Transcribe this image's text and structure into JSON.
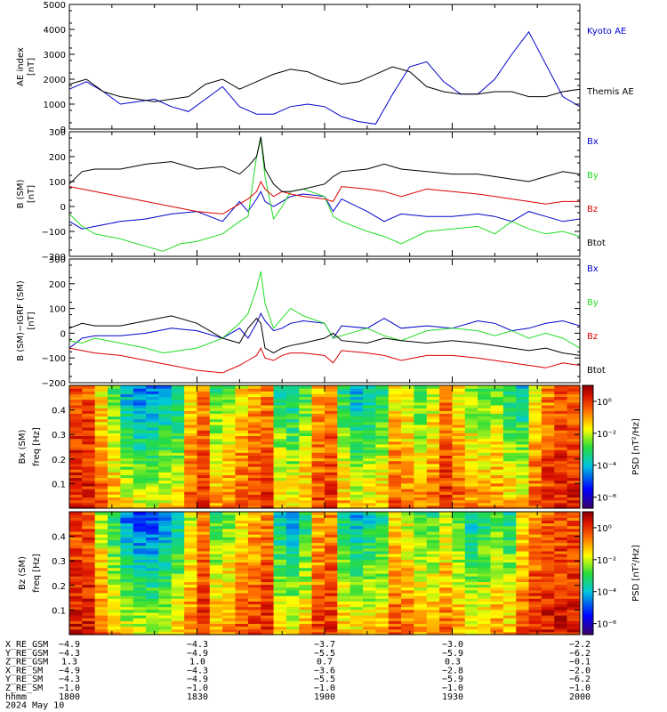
{
  "colors": {
    "blue": "#0000cc",
    "green": "#22dd22",
    "red": "#dd0000",
    "black": "#000000"
  },
  "chart_data": [
    {
      "type": "line",
      "ylabel": "AE index",
      "yunit": "[nT]",
      "ylim": [
        0,
        5000
      ],
      "yticks": [
        "0",
        "1000",
        "2000",
        "3000",
        "4000",
        "5000"
      ],
      "xlim": [
        0,
        120
      ],
      "x_unit_note": "minutes after 1800 UT",
      "series": [
        {
          "name": "Kyoto AE",
          "color": "#0000cc",
          "x": [
            0,
            4,
            8,
            12,
            16,
            20,
            24,
            28,
            32,
            36,
            40,
            44,
            48,
            52,
            56,
            60,
            64,
            68,
            72,
            76,
            80,
            84,
            88,
            92,
            96,
            100,
            104,
            108,
            112,
            116,
            120
          ],
          "y": [
            1600,
            1900,
            1500,
            1000,
            1100,
            1200,
            900,
            700,
            1200,
            1700,
            900,
            600,
            600,
            900,
            1000,
            900,
            500,
            300,
            200,
            1400,
            2500,
            2700,
            1900,
            1400,
            1400,
            2000,
            3000,
            3900,
            2600,
            1300,
            900
          ]
        },
        {
          "name": "Themis AE",
          "color": "#000000",
          "x": [
            0,
            4,
            8,
            12,
            16,
            20,
            24,
            28,
            32,
            36,
            40,
            44,
            48,
            52,
            56,
            60,
            64,
            68,
            72,
            76,
            80,
            84,
            88,
            92,
            96,
            100,
            104,
            108,
            112,
            116,
            120
          ],
          "y": [
            1800,
            2000,
            1500,
            1300,
            1200,
            1100,
            1200,
            1300,
            1800,
            2000,
            1600,
            1900,
            2200,
            2400,
            2300,
            2000,
            1800,
            1900,
            2200,
            2500,
            2300,
            1700,
            1500,
            1400,
            1400,
            1500,
            1500,
            1300,
            1300,
            1500,
            1600
          ]
        }
      ]
    },
    {
      "type": "line",
      "ylabel": "B (SM)",
      "yunit": "[nT]",
      "ylim": [
        -200,
        300
      ],
      "yticks": [
        "−200",
        "−100",
        "0",
        "100",
        "200",
        "300"
      ],
      "xlim": [
        0,
        120
      ],
      "series": [
        {
          "name": "Bx",
          "color": "#0000cc",
          "x": [
            0,
            3,
            6,
            12,
            18,
            24,
            30,
            36,
            40,
            42,
            44,
            45,
            46,
            48,
            50,
            52,
            55,
            60,
            62,
            64,
            70,
            74,
            78,
            84,
            90,
            96,
            100,
            104,
            108,
            112,
            116,
            120
          ],
          "y": [
            -60,
            -90,
            -80,
            -60,
            -50,
            -30,
            -20,
            -60,
            20,
            -20,
            30,
            60,
            20,
            0,
            20,
            40,
            50,
            40,
            -20,
            30,
            -20,
            -60,
            -30,
            -40,
            -40,
            -30,
            -40,
            -60,
            -20,
            -40,
            -60,
            -50
          ]
        },
        {
          "name": "By",
          "color": "#22dd22",
          "x": [
            0,
            3,
            6,
            12,
            18,
            22,
            26,
            30,
            36,
            40,
            42,
            44,
            45,
            46,
            48,
            50,
            52,
            55,
            60,
            62,
            64,
            70,
            74,
            78,
            84,
            90,
            96,
            100,
            104,
            108,
            112,
            116,
            120
          ],
          "y": [
            -30,
            -80,
            -110,
            -130,
            -160,
            -180,
            -150,
            -140,
            -110,
            -60,
            -40,
            200,
            270,
            120,
            -50,
            0,
            60,
            70,
            40,
            -40,
            -60,
            -100,
            -120,
            -150,
            -100,
            -90,
            -80,
            -110,
            -60,
            -90,
            -110,
            -100,
            -120
          ]
        },
        {
          "name": "Bz",
          "color": "#dd0000",
          "x": [
            0,
            3,
            6,
            12,
            18,
            24,
            30,
            36,
            40,
            42,
            44,
            45,
            46,
            48,
            50,
            52,
            55,
            60,
            62,
            64,
            70,
            74,
            78,
            84,
            90,
            96,
            100,
            104,
            108,
            112,
            116,
            120
          ],
          "y": [
            80,
            70,
            60,
            40,
            20,
            0,
            -20,
            -30,
            10,
            30,
            60,
            100,
            70,
            40,
            60,
            50,
            40,
            30,
            20,
            80,
            70,
            60,
            40,
            70,
            60,
            50,
            40,
            30,
            20,
            10,
            20,
            20
          ]
        },
        {
          "name": "Btot",
          "color": "#000000",
          "x": [
            0,
            3,
            6,
            12,
            18,
            24,
            30,
            36,
            40,
            42,
            44,
            45,
            46,
            48,
            50,
            52,
            55,
            60,
            62,
            64,
            70,
            74,
            78,
            84,
            90,
            96,
            100,
            104,
            108,
            112,
            116,
            120
          ],
          "y": [
            90,
            140,
            150,
            150,
            170,
            180,
            150,
            160,
            130,
            160,
            200,
            280,
            150,
            90,
            60,
            60,
            70,
            90,
            120,
            140,
            150,
            170,
            150,
            140,
            130,
            130,
            120,
            110,
            100,
            120,
            140,
            130
          ]
        }
      ]
    },
    {
      "type": "line",
      "ylabel": "B (SM)−IGRF (SM)",
      "yunit": "[nT]",
      "ylim": [
        -200,
        300
      ],
      "yticks": [
        "−200",
        "−100",
        "0",
        "100",
        "200",
        "300"
      ],
      "xlim": [
        0,
        120
      ],
      "series": [
        {
          "name": "Bx",
          "color": "#0000cc",
          "x": [
            0,
            3,
            6,
            12,
            18,
            24,
            30,
            36,
            40,
            42,
            44,
            45,
            46,
            48,
            50,
            52,
            55,
            60,
            62,
            64,
            70,
            74,
            78,
            84,
            90,
            96,
            100,
            104,
            108,
            112,
            116,
            120
          ],
          "y": [
            -60,
            -20,
            -10,
            -10,
            0,
            20,
            10,
            -20,
            20,
            -20,
            40,
            80,
            50,
            10,
            20,
            40,
            50,
            40,
            -20,
            30,
            20,
            60,
            20,
            30,
            20,
            50,
            40,
            10,
            20,
            40,
            50,
            30
          ]
        },
        {
          "name": "By",
          "color": "#22dd22",
          "x": [
            0,
            3,
            6,
            12,
            18,
            22,
            26,
            30,
            36,
            40,
            42,
            44,
            45,
            46,
            48,
            50,
            52,
            55,
            60,
            62,
            64,
            70,
            74,
            78,
            84,
            90,
            96,
            100,
            104,
            108,
            112,
            116,
            120
          ],
          "y": [
            -30,
            -40,
            -20,
            -40,
            -60,
            -80,
            -70,
            -60,
            -20,
            40,
            80,
            180,
            250,
            120,
            20,
            60,
            100,
            70,
            40,
            -20,
            -10,
            20,
            -10,
            -30,
            10,
            20,
            10,
            -10,
            10,
            -20,
            0,
            -20,
            -60
          ]
        },
        {
          "name": "Bz",
          "color": "#dd0000",
          "x": [
            0,
            3,
            6,
            12,
            18,
            24,
            30,
            36,
            40,
            42,
            44,
            45,
            46,
            48,
            50,
            52,
            55,
            60,
            62,
            64,
            70,
            74,
            78,
            84,
            90,
            96,
            100,
            104,
            108,
            112,
            116,
            120
          ],
          "y": [
            -60,
            -70,
            -80,
            -90,
            -110,
            -130,
            -150,
            -160,
            -130,
            -110,
            -90,
            -60,
            -100,
            -110,
            -90,
            -80,
            -80,
            -90,
            -120,
            -70,
            -80,
            -90,
            -110,
            -90,
            -90,
            -100,
            -110,
            -120,
            -130,
            -140,
            -120,
            -130
          ]
        },
        {
          "name": "Btot",
          "color": "#000000",
          "x": [
            0,
            3,
            6,
            12,
            18,
            24,
            30,
            36,
            40,
            42,
            44,
            45,
            46,
            48,
            50,
            52,
            55,
            60,
            62,
            64,
            70,
            74,
            78,
            84,
            90,
            96,
            100,
            104,
            108,
            112,
            116,
            120
          ],
          "y": [
            20,
            40,
            30,
            30,
            50,
            70,
            40,
            -20,
            -40,
            20,
            60,
            40,
            -60,
            -80,
            -60,
            -50,
            -40,
            -20,
            0,
            -30,
            -40,
            -20,
            -30,
            -40,
            -30,
            -40,
            -50,
            -60,
            -70,
            -60,
            -80,
            -90
          ]
        }
      ]
    },
    {
      "type": "heatmap",
      "ylabel": "Bx (SM)",
      "ylabel2": "freq",
      "yunit": "[Hz]",
      "ylim": [
        0,
        0.5
      ],
      "yticks": [
        "0.1",
        "0.2",
        "0.3",
        "0.4"
      ],
      "xlim": [
        0,
        120
      ],
      "colorbar": {
        "label": "PSD [nT²/Hz]",
        "ticks": [
          "10⁻⁶",
          "10⁻⁴",
          "10⁻²",
          "10⁰"
        ]
      },
      "column_power": [
        0.15,
        0.15,
        0.3,
        0.45,
        0.6,
        0.65,
        0.65,
        0.6,
        0.55,
        0.3,
        0.2,
        0.45,
        0.4,
        0.3,
        0.25,
        0.2,
        0.5,
        0.55,
        0.45,
        0.25,
        0.2,
        0.5,
        0.6,
        0.55,
        0.5,
        0.3,
        0.35,
        0.45,
        0.35,
        0.2,
        0.3,
        0.4,
        0.45,
        0.4,
        0.5,
        0.55,
        0.3,
        0.2,
        0.15,
        0.15
      ],
      "freq_decay": 0.6
    },
    {
      "type": "heatmap",
      "ylabel": "Bz (SM)",
      "ylabel2": "freq",
      "yunit": "[Hz]",
      "ylim": [
        0,
        0.5
      ],
      "yticks": [
        "0.1",
        "0.2",
        "0.3",
        "0.4"
      ],
      "xlim": [
        0,
        120
      ],
      "colorbar": {
        "label": "PSD [nT²/Hz]",
        "ticks": [
          "10⁻⁶",
          "10⁻⁴",
          "10⁻²",
          "10⁰"
        ]
      },
      "column_power": [
        0.15,
        0.15,
        0.35,
        0.5,
        0.65,
        0.7,
        0.7,
        0.65,
        0.55,
        0.35,
        0.2,
        0.45,
        0.4,
        0.3,
        0.25,
        0.2,
        0.55,
        0.6,
        0.5,
        0.25,
        0.2,
        0.5,
        0.6,
        0.55,
        0.5,
        0.3,
        0.35,
        0.45,
        0.45,
        0.35,
        0.45,
        0.55,
        0.5,
        0.45,
        0.5,
        0.3,
        0.2,
        0.15,
        0.15,
        0.15
      ],
      "freq_decay": 0.6
    }
  ],
  "ephemeris": {
    "rows": [
      {
        "label": "X_RE_GSM",
        "values": [
          "−4.9",
          "−4.3",
          "−3.7",
          "−3.0",
          "−2.2"
        ]
      },
      {
        "label": "Y_RE_GSM",
        "values": [
          "−4.3",
          "−4.9",
          "−5.5",
          "−5.9",
          "−6.2"
        ]
      },
      {
        "label": "Z_RE_GSM",
        "values": [
          "1.3",
          "1.0",
          "0.7",
          "0.3",
          "−0.1"
        ]
      },
      {
        "label": "X_RE_SM",
        "values": [
          "−4.9",
          "−4.3",
          "−3.6",
          "−2.8",
          "−2.0"
        ]
      },
      {
        "label": "Y_RE_SM",
        "values": [
          "−4.3",
          "−4.9",
          "−5.5",
          "−5.9",
          "−6.2"
        ]
      },
      {
        "label": "Z_RE_SM",
        "values": [
          "−1.0",
          "−1.0",
          "−1.0",
          "−1.0",
          "−1.0"
        ]
      },
      {
        "label": "hhmm",
        "values": [
          "1800",
          "1830",
          "1900",
          "1930",
          "2000"
        ]
      }
    ],
    "date": "2024 May 10"
  }
}
